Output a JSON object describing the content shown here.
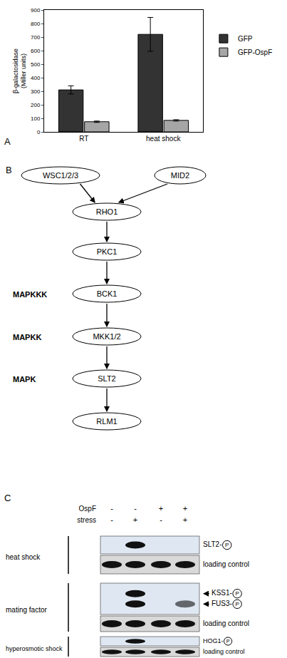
{
  "panel_labels": {
    "a": "A",
    "b": "B",
    "c": "C"
  },
  "chart_data": {
    "type": "bar",
    "categories": [
      "RT",
      "heat shock"
    ],
    "ylabel": [
      "β-galactosidase",
      "(Miller units)"
    ],
    "series": [
      {
        "name": "GFP",
        "color": "#333333",
        "values": [
          310,
          720
        ],
        "errors": [
          30,
          125
        ]
      },
      {
        "name": "GFP-OspF",
        "color": "#a6a6a6",
        "values": [
          75,
          85
        ],
        "errors": [
          5,
          5
        ]
      }
    ],
    "ylim": [
      0,
      900
    ],
    "yticks": [
      0,
      100,
      200,
      300,
      400,
      500,
      600,
      700,
      800,
      900
    ],
    "grid": false,
    "legend": "right"
  },
  "diagram": {
    "nodes": [
      "WSC1/2/3",
      "MID2",
      "RHO1",
      "PKC1",
      "BCK1",
      "MKK1/2",
      "SLT2",
      "RLM1"
    ],
    "edges": [
      [
        0,
        2
      ],
      [
        1,
        2
      ],
      [
        2,
        3
      ],
      [
        3,
        4
      ],
      [
        4,
        5
      ],
      [
        5,
        6
      ],
      [
        6,
        7
      ]
    ],
    "levels": [
      {
        "label": "MAPKKK",
        "node": 4
      },
      {
        "label": "MAPKK",
        "node": 5
      },
      {
        "label": "MAPK",
        "node": 6
      }
    ]
  },
  "blots": {
    "header": [
      {
        "label": "OspF",
        "signs": [
          "-",
          "-",
          "+",
          "+"
        ]
      },
      {
        "label": "stress",
        "signs": [
          "-",
          "+",
          "-",
          "+"
        ]
      }
    ],
    "conditions": [
      {
        "label": "heat shock",
        "blots": [
          {
            "bands": [
              {
                "label": "SLT2-",
                "circled": "P",
                "intensity": [
                  0,
                  1,
                  0,
                  0
                ]
              }
            ]
          },
          {
            "bands": [
              {
                "label": "loading control",
                "intensity": [
                  1,
                  1,
                  1,
                  1
                ]
              }
            ]
          }
        ]
      },
      {
        "label": "mating factor",
        "blots": [
          {
            "bands": [
              {
                "label": "KSS1-",
                "circled": "P",
                "arrow": true,
                "intensity": [
                  0,
                  1,
                  0,
                  0
                ]
              },
              {
                "label": "FUS3-",
                "circled": "P",
                "arrow": true,
                "intensity": [
                  0,
                  1,
                  0,
                  0.6
                ]
              }
            ]
          },
          {
            "bands": [
              {
                "label": "loading control",
                "intensity": [
                  1,
                  1,
                  1,
                  1
                ]
              }
            ]
          }
        ]
      },
      {
        "label": "hyperosmotic shock",
        "blots": [
          {
            "bands": [
              {
                "label": "HOG1-",
                "circled": "P",
                "intensity": [
                  0,
                  1,
                  0,
                  0
                ]
              }
            ]
          },
          {
            "bands": [
              {
                "label": "loading control",
                "intensity": [
                  1,
                  1,
                  1,
                  1
                ]
              }
            ]
          }
        ]
      }
    ]
  }
}
